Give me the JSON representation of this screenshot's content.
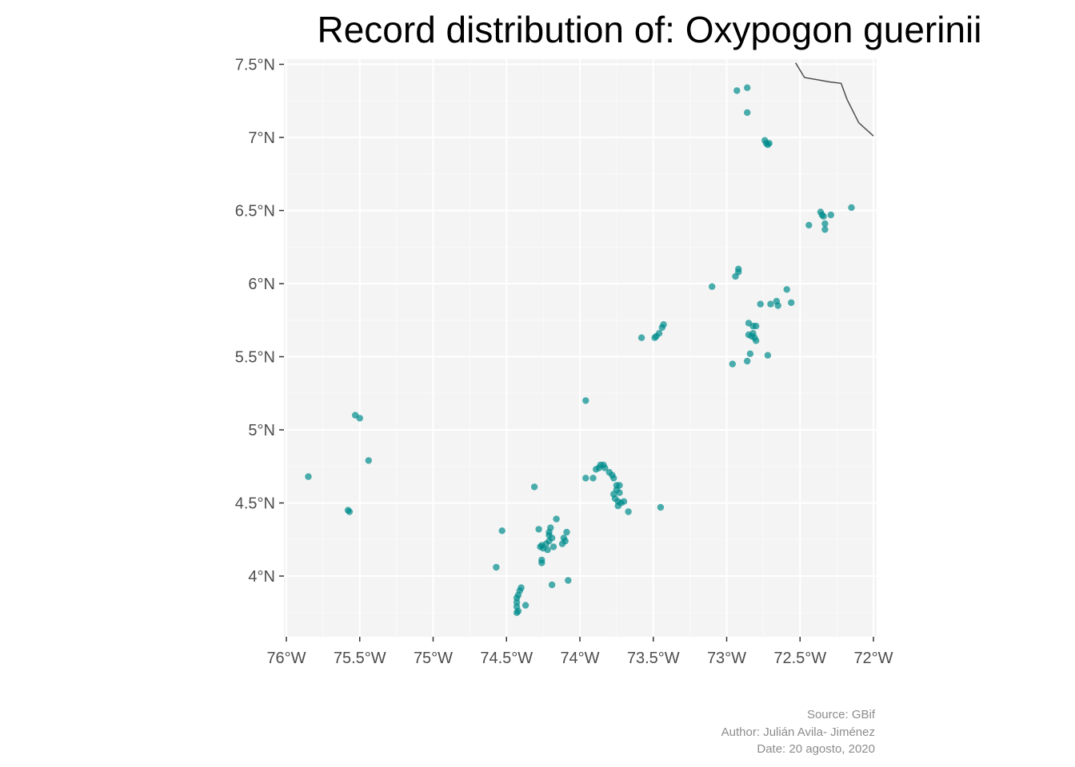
{
  "chart_data": {
    "type": "scatter",
    "title": "Record distribution of: Oxypogon guerinii",
    "xlabel": "",
    "ylabel": "",
    "xlim": [
      -76.0,
      -72.0
    ],
    "ylim": [
      3.6,
      7.5
    ],
    "x_ticks": [
      {
        "value": -76.0,
        "label": "76°W"
      },
      {
        "value": -75.5,
        "label": "75.5°W"
      },
      {
        "value": -75.0,
        "label": "75°W"
      },
      {
        "value": -74.5,
        "label": "74.5°W"
      },
      {
        "value": -74.0,
        "label": "74°W"
      },
      {
        "value": -73.5,
        "label": "73.5°W"
      },
      {
        "value": -73.0,
        "label": "73°W"
      },
      {
        "value": -72.5,
        "label": "72.5°W"
      },
      {
        "value": -72.0,
        "label": "72°W"
      }
    ],
    "y_ticks": [
      {
        "value": 4.0,
        "label": "4°N"
      },
      {
        "value": 4.5,
        "label": "4.5°N"
      },
      {
        "value": 5.0,
        "label": "5°N"
      },
      {
        "value": 5.5,
        "label": "5.5°N"
      },
      {
        "value": 6.0,
        "label": "6°N"
      },
      {
        "value": 6.5,
        "label": "6.5°N"
      },
      {
        "value": 7.0,
        "label": "7°N"
      },
      {
        "value": 7.5,
        "label": "7.5°N"
      }
    ],
    "grid": true,
    "point_color": "#008b8b",
    "panel_background": "#f4f4f4",
    "border_line": [
      [
        -72.53,
        7.51
      ],
      [
        -72.47,
        7.41
      ],
      [
        -72.3,
        7.38
      ],
      [
        -72.22,
        7.37
      ],
      [
        -72.18,
        7.26
      ],
      [
        -72.1,
        7.1
      ],
      [
        -72.0,
        7.01
      ]
    ],
    "points": [
      [
        -72.93,
        7.32
      ],
      [
        -72.86,
        7.34
      ],
      [
        -72.86,
        7.17
      ],
      [
        -72.74,
        6.98
      ],
      [
        -72.73,
        6.96
      ],
      [
        -72.72,
        6.95
      ],
      [
        -72.71,
        6.96
      ],
      [
        -72.36,
        6.49
      ],
      [
        -72.35,
        6.47
      ],
      [
        -72.34,
        6.46
      ],
      [
        -72.29,
        6.47
      ],
      [
        -72.15,
        6.52
      ],
      [
        -72.44,
        6.4
      ],
      [
        -72.33,
        6.41
      ],
      [
        -72.33,
        6.37
      ],
      [
        -72.92,
        6.1
      ],
      [
        -72.92,
        6.08
      ],
      [
        -72.94,
        6.05
      ],
      [
        -73.1,
        5.98
      ],
      [
        -72.59,
        5.96
      ],
      [
        -72.66,
        5.88
      ],
      [
        -72.7,
        5.86
      ],
      [
        -72.65,
        5.85
      ],
      [
        -72.56,
        5.87
      ],
      [
        -72.77,
        5.86
      ],
      [
        -72.85,
        5.73
      ],
      [
        -72.82,
        5.71
      ],
      [
        -72.8,
        5.71
      ],
      [
        -72.85,
        5.65
      ],
      [
        -72.83,
        5.64
      ],
      [
        -72.81,
        5.63
      ],
      [
        -72.8,
        5.61
      ],
      [
        -72.82,
        5.66
      ],
      [
        -72.84,
        5.52
      ],
      [
        -72.86,
        5.47
      ],
      [
        -72.72,
        5.51
      ],
      [
        -72.96,
        5.45
      ],
      [
        -73.43,
        5.72
      ],
      [
        -73.44,
        5.7
      ],
      [
        -73.46,
        5.66
      ],
      [
        -73.48,
        5.64
      ],
      [
        -73.49,
        5.63
      ],
      [
        -73.58,
        5.63
      ],
      [
        -73.96,
        5.2
      ],
      [
        -75.53,
        5.1
      ],
      [
        -75.5,
        5.08
      ],
      [
        -75.44,
        4.79
      ],
      [
        -75.85,
        4.68
      ],
      [
        -75.58,
        4.45
      ],
      [
        -75.57,
        4.44
      ],
      [
        -74.31,
        4.61
      ],
      [
        -73.96,
        4.67
      ],
      [
        -73.91,
        4.67
      ],
      [
        -73.89,
        4.73
      ],
      [
        -73.87,
        4.74
      ],
      [
        -73.86,
        4.76
      ],
      [
        -73.84,
        4.76
      ],
      [
        -73.83,
        4.74
      ],
      [
        -73.8,
        4.71
      ],
      [
        -73.78,
        4.69
      ],
      [
        -73.77,
        4.67
      ],
      [
        -73.75,
        4.62
      ],
      [
        -73.73,
        4.62
      ],
      [
        -73.75,
        4.59
      ],
      [
        -73.73,
        4.57
      ],
      [
        -73.77,
        4.56
      ],
      [
        -73.76,
        4.53
      ],
      [
        -73.74,
        4.51
      ],
      [
        -73.72,
        4.5
      ],
      [
        -73.7,
        4.51
      ],
      [
        -73.74,
        4.48
      ],
      [
        -73.67,
        4.44
      ],
      [
        -73.45,
        4.47
      ],
      [
        -74.53,
        4.31
      ],
      [
        -74.28,
        4.32
      ],
      [
        -74.2,
        4.33
      ],
      [
        -74.21,
        4.3
      ],
      [
        -74.21,
        4.28
      ],
      [
        -74.19,
        4.26
      ],
      [
        -74.21,
        4.24
      ],
      [
        -74.23,
        4.22
      ],
      [
        -74.26,
        4.21
      ],
      [
        -74.27,
        4.2
      ],
      [
        -74.25,
        4.19
      ],
      [
        -74.22,
        4.18
      ],
      [
        -74.18,
        4.2
      ],
      [
        -74.16,
        4.39
      ],
      [
        -74.09,
        4.3
      ],
      [
        -74.11,
        4.26
      ],
      [
        -74.1,
        4.24
      ],
      [
        -74.12,
        4.22
      ],
      [
        -74.26,
        4.11
      ],
      [
        -74.26,
        4.09
      ],
      [
        -74.57,
        4.06
      ],
      [
        -74.08,
        3.97
      ],
      [
        -74.19,
        3.94
      ],
      [
        -74.4,
        3.92
      ],
      [
        -74.41,
        3.9
      ],
      [
        -74.42,
        3.87
      ],
      [
        -74.43,
        3.85
      ],
      [
        -74.43,
        3.82
      ],
      [
        -74.37,
        3.8
      ],
      [
        -74.43,
        3.79
      ],
      [
        -74.42,
        3.76
      ],
      [
        -74.43,
        3.75
      ]
    ],
    "caption": [
      "Source: GBif",
      "Author: Julián Avila- Jiménez",
      "Date: 20 agosto, 2020"
    ]
  }
}
